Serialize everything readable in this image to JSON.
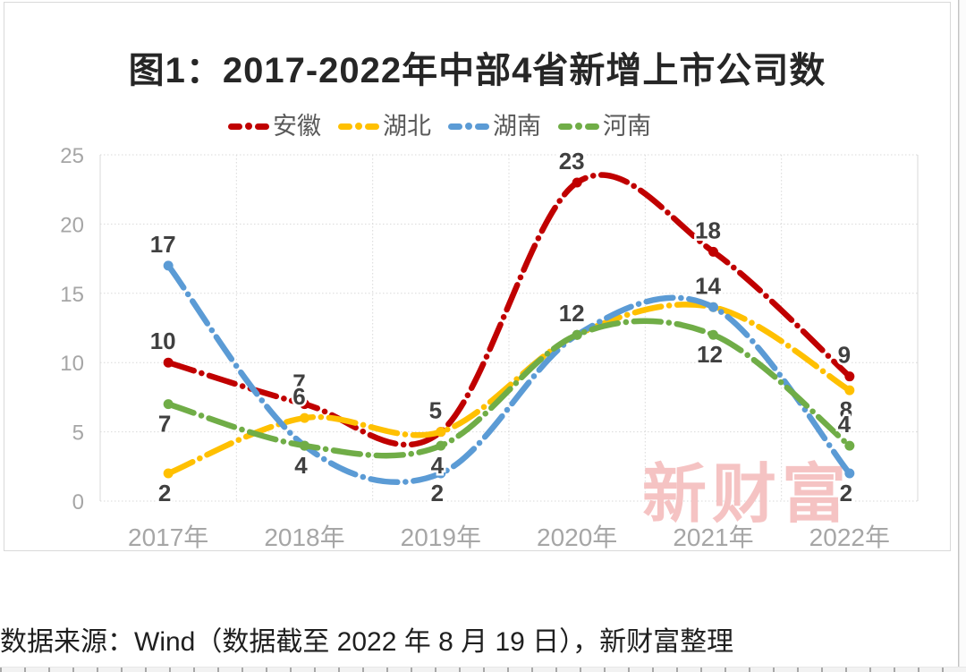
{
  "page": {
    "watermark": "新财富",
    "source_note": "数据来源：Wind（数据截至 2022 年 8 月 19 日），新财富整理"
  },
  "chart_data": {
    "type": "line",
    "title": "图1：2017-2022年中部4省新增上市公司数",
    "categories": [
      "2017年",
      "2018年",
      "2019年",
      "2020年",
      "2021年",
      "2022年"
    ],
    "xlabel": "",
    "ylabel": "",
    "ylim": [
      0,
      25
    ],
    "y_ticks": [
      0,
      5,
      10,
      15,
      20,
      25
    ],
    "grid": true,
    "legend_position": "top",
    "line_style": "smooth curves, long-dash-dot stroke, round point markers, value labels",
    "axis_text_color": "#a6a6a6",
    "data_label_color": "#404040",
    "grid_color": "#d9d9d9",
    "watermark_color": "#f5c3c3",
    "series": [
      {
        "name": "安徽",
        "color": "#C00000",
        "values": [
          10,
          7,
          5,
          23,
          18,
          9
        ],
        "label_pos": [
          "above",
          "above",
          null,
          "above",
          "above",
          "above"
        ]
      },
      {
        "name": "湖北",
        "color": "#FFC000",
        "values": [
          2,
          6,
          5,
          12,
          14,
          8
        ],
        "label_pos": [
          "below",
          "above",
          "above",
          null,
          null,
          "below"
        ]
      },
      {
        "name": "湖南",
        "color": "#5B9BD5",
        "values": [
          17,
          4,
          2,
          12,
          14,
          2
        ],
        "label_pos": [
          "above",
          null,
          "below",
          null,
          "above",
          "below"
        ]
      },
      {
        "name": "河南",
        "color": "#70AD47",
        "values": [
          7,
          4,
          4,
          12,
          12,
          4
        ],
        "label_pos": [
          "below",
          "below",
          "below",
          "above",
          "below",
          "above"
        ]
      }
    ]
  }
}
